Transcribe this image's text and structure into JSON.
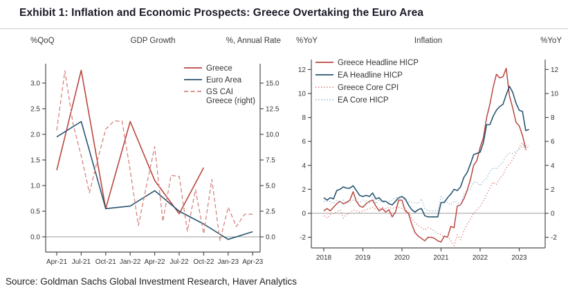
{
  "header": {
    "title": "Exhibit 1: Inflation and Economic Prospects: Greece Overtaking the Euro Area"
  },
  "source": {
    "text": "Source: Goldman Sachs Global Investment Research, Haver Analytics"
  },
  "colors": {
    "greece_red": "#b9453e",
    "cai_pink": "#d4837d",
    "euro_navy": "#27546f",
    "ea_core_blue": "#92b4cf",
    "axis_gray": "#4a4a4a",
    "zero_gray": "#9b9b9b"
  },
  "chart_data": [
    {
      "type": "line",
      "title": "GDP Growth",
      "left_axis_label": "%QoQ",
      "right_axis_label": "%, Annual Rate",
      "x_tick_labels": [
        "Apr-21",
        "Jul-21",
        "Oct-21",
        "Jan-22",
        "Apr-22",
        "Jul-22",
        "Oct-22",
        "Jan-23",
        "Apr-23"
      ],
      "left_ticks": [
        {
          "v": 3.0,
          "label": "3.0"
        },
        {
          "v": 2.5,
          "label": "2.5"
        },
        {
          "v": 2.0,
          "label": "2.0"
        },
        {
          "v": 1.5,
          "label": "1.5"
        },
        {
          "v": 1.0,
          "label": "1.0"
        },
        {
          "v": 0.5,
          "label": "0.5"
        },
        {
          "v": 0.0,
          "label": "0.0"
        }
      ],
      "right_ticks": [
        {
          "v": 15.0,
          "label": "15.0"
        },
        {
          "v": 12.5,
          "label": "12.5"
        },
        {
          "v": 10.0,
          "label": "10.0"
        },
        {
          "v": 7.5,
          "label": "7.5"
        },
        {
          "v": 5.0,
          "label": "5.0"
        },
        {
          "v": 2.5,
          "label": "2.5"
        },
        {
          "v": 0.0,
          "label": "0.0"
        }
      ],
      "left_range": [
        -0.3,
        3.4
      ],
      "right_range": [
        -1.5,
        16.9
      ],
      "grid": false,
      "zero_line": true,
      "legend_position": "top-right",
      "legend": [
        {
          "lines": [
            "Greece"
          ],
          "style": "solid",
          "color": "#b9453e"
        },
        {
          "lines": [
            "Euro Area"
          ],
          "style": "solid",
          "color": "#27546f"
        },
        {
          "lines": [
            "GS CAI",
            "Greece (right)"
          ],
          "style": "dashed",
          "color": "#d4837d"
        }
      ],
      "series": [
        {
          "name": "Greece",
          "axis": "left",
          "style": "solid",
          "color": "#b9453e",
          "width": 1.6,
          "month_step": 3,
          "values": [
            1.3,
            3.25,
            0.55,
            2.25,
            1.1,
            0.45,
            1.35,
            null,
            null
          ]
        },
        {
          "name": "Euro Area",
          "axis": "left",
          "style": "solid",
          "color": "#27546f",
          "width": 1.6,
          "month_step": 3,
          "values": [
            1.95,
            2.25,
            0.55,
            0.6,
            0.9,
            0.5,
            0.25,
            -0.05,
            0.1
          ]
        },
        {
          "name": "GS CAI Greece (right)",
          "axis": "right",
          "style": "dashed",
          "color": "#d4837d",
          "width": 1.3,
          "month_step": 1,
          "values": [
            10.4,
            16.2,
            11.0,
            7.9,
            4.3,
            7.5,
            10.5,
            11.3,
            11.3,
            6.5,
            1.1,
            5.0,
            8.8,
            1.5,
            6.0,
            5.9,
            0.55,
            4.6,
            0.3,
            5.6,
            -0.4,
            2.9,
            1.0,
            2.2,
            2.2
          ]
        }
      ]
    },
    {
      "type": "line",
      "title": "Inflation",
      "left_axis_label": "%YoY",
      "right_axis_label": "%YoY",
      "x_tick_labels": [
        "2018",
        "2019",
        "2020",
        "2021",
        "2022",
        "2023"
      ],
      "left_ticks": [
        {
          "v": 12,
          "label": "12"
        },
        {
          "v": 10,
          "label": "10"
        },
        {
          "v": 8,
          "label": "8"
        },
        {
          "v": 6,
          "label": "6"
        },
        {
          "v": 4,
          "label": "4"
        },
        {
          "v": 2,
          "label": "2"
        },
        {
          "v": 0,
          "label": "0"
        },
        {
          "v": -2,
          "label": "-2"
        }
      ],
      "right_ticks": [
        {
          "v": 12,
          "label": "12"
        },
        {
          "v": 10,
          "label": "10"
        },
        {
          "v": 8,
          "label": "8"
        },
        {
          "v": 6,
          "label": "6"
        },
        {
          "v": 4,
          "label": "4"
        },
        {
          "v": 2,
          "label": "2"
        },
        {
          "v": 0,
          "label": "0"
        },
        {
          "v": -2,
          "label": "-2"
        }
      ],
      "left_range": [
        -2.9,
        12.8
      ],
      "right_range": [
        -2.9,
        12.8
      ],
      "grid": false,
      "zero_line": true,
      "legend_position": "top-left",
      "legend": [
        {
          "lines": [
            "Greece Headline HICP"
          ],
          "style": "solid",
          "color": "#b9453e"
        },
        {
          "lines": [
            "EA Headline HICP"
          ],
          "style": "solid",
          "color": "#27546f"
        },
        {
          "lines": [
            "Greece Core CPI"
          ],
          "style": "dotted",
          "color": "#d4837d"
        },
        {
          "lines": [
            "EA Core HICP"
          ],
          "style": "dotted",
          "color": "#92b4cf"
        }
      ],
      "series": [
        {
          "name": "Greece Headline HICP",
          "axis": "left",
          "style": "solid",
          "color": "#b9453e",
          "width": 1.5,
          "month_step": 1,
          "values": [
            0.2,
            0.4,
            0.2,
            0.5,
            0.8,
            1.0,
            0.8,
            0.9,
            1.1,
            1.8,
            1.0,
            0.6,
            0.5,
            0.8,
            1.0,
            1.1,
            0.6,
            0.2,
            0.4,
            0.1,
            0.3,
            -0.3,
            0.1,
            1.1,
            1.1,
            0.2,
            0.0,
            -0.9,
            -1.6,
            -1.9,
            -2.1,
            -2.3,
            -2.0,
            -2.0,
            -2.1,
            -2.3,
            -2.4,
            -1.9,
            -2.0,
            -1.1,
            -1.2,
            0.6,
            0.7,
            1.2,
            1.9,
            2.8,
            4.0,
            4.4,
            5.5,
            6.3,
            8.0,
            9.1,
            10.5,
            11.6,
            11.3,
            11.4,
            12.1,
            9.8,
            8.8,
            7.6,
            7.3,
            6.5,
            5.4,
            null
          ]
        },
        {
          "name": "EA Headline HICP",
          "axis": "left",
          "style": "solid",
          "color": "#27546f",
          "width": 1.6,
          "month_step": 1,
          "values": [
            1.3,
            1.1,
            1.3,
            1.2,
            1.9,
            2.0,
            2.2,
            2.1,
            2.1,
            2.3,
            1.9,
            1.5,
            1.4,
            1.5,
            1.4,
            1.7,
            1.2,
            1.3,
            1.0,
            1.0,
            0.8,
            0.7,
            1.0,
            1.3,
            1.4,
            1.2,
            0.7,
            0.3,
            0.1,
            0.3,
            0.4,
            -0.2,
            -0.3,
            -0.3,
            -0.3,
            -0.3,
            0.9,
            0.9,
            1.3,
            1.6,
            2.0,
            1.9,
            2.2,
            3.0,
            3.4,
            4.1,
            4.9,
            5.0,
            5.1,
            5.9,
            7.4,
            7.4,
            8.1,
            8.6,
            8.9,
            9.1,
            9.9,
            10.6,
            10.1,
            9.2,
            8.6,
            8.5,
            6.9,
            7.0
          ]
        },
        {
          "name": "Greece Core CPI",
          "axis": "left",
          "style": "dotted",
          "color": "#d4837d",
          "width": 1.4,
          "month_step": 1,
          "values": [
            -0.2,
            -0.4,
            -0.1,
            0.0,
            0.1,
            0.3,
            -0.4,
            -0.1,
            0.0,
            0.3,
            0.2,
            0.1,
            0.2,
            0.3,
            0.4,
            0.5,
            0.3,
            0.4,
            0.5,
            0.4,
            0.5,
            0.4,
            0.5,
            0.5,
            0.4,
            0.3,
            0.1,
            -0.4,
            -0.8,
            -1.0,
            -1.2,
            -1.4,
            -1.2,
            -1.3,
            -1.5,
            -1.7,
            -1.8,
            -2.0,
            -1.9,
            -2.3,
            -2.7,
            -1.8,
            -2.2,
            -1.5,
            -0.9,
            -0.5,
            0.0,
            0.3,
            0.6,
            1.0,
            1.6,
            2.1,
            2.6,
            2.4,
            2.9,
            3.2,
            3.8,
            4.1,
            4.5,
            5.0,
            5.5,
            5.9,
            5.2,
            5.7
          ]
        },
        {
          "name": "EA Core HICP",
          "axis": "left",
          "style": "dotted",
          "color": "#92b4cf",
          "width": 1.4,
          "month_step": 1,
          "values": [
            1.0,
            1.0,
            1.0,
            0.8,
            1.1,
            0.9,
            1.1,
            0.9,
            0.9,
            1.1,
            1.0,
            0.9,
            1.1,
            1.0,
            0.8,
            1.3,
            0.8,
            1.1,
            0.9,
            0.9,
            1.0,
            1.1,
            1.3,
            1.3,
            1.1,
            1.2,
            1.0,
            0.9,
            0.9,
            0.8,
            1.2,
            0.4,
            0.2,
            0.2,
            0.2,
            0.2,
            1.4,
            1.1,
            0.9,
            0.7,
            1.0,
            0.9,
            0.7,
            1.6,
            1.9,
            2.0,
            2.6,
            2.6,
            2.3,
            2.7,
            2.9,
            3.5,
            3.8,
            3.7,
            4.0,
            4.3,
            4.8,
            5.0,
            5.0,
            5.2,
            5.3,
            5.6,
            5.7,
            5.6
          ]
        }
      ]
    }
  ]
}
